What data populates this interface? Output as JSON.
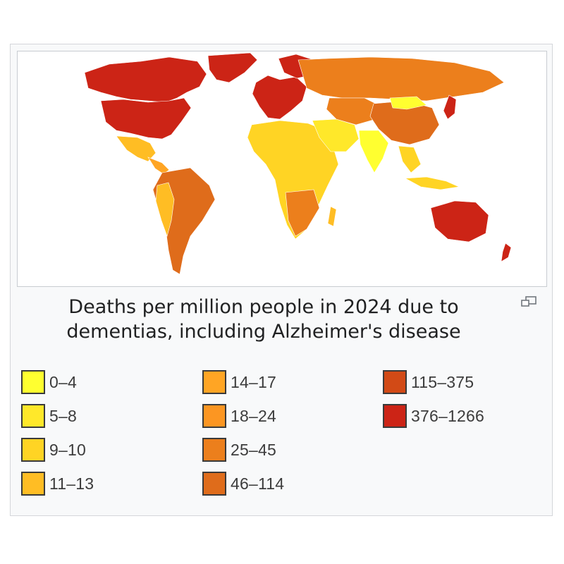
{
  "caption": {
    "line1": "Deaths per million people in 2024 due to",
    "line2": "dementias, including Alzheimer's disease"
  },
  "enlarge_icon": "enlarge-icon",
  "legend": {
    "columns": [
      [
        {
          "label": "0–4",
          "color": "#ffff30"
        },
        {
          "label": "5–8",
          "color": "#ffe82a"
        },
        {
          "label": "9–10",
          "color": "#ffd424"
        },
        {
          "label": "11–13",
          "color": "#ffbd24"
        }
      ],
      [
        {
          "label": "14–17",
          "color": "#ffa524"
        },
        {
          "label": "18–24",
          "color": "#fc9622"
        },
        {
          "label": "25–45",
          "color": "#ec7f1c"
        },
        {
          "label": "46–114",
          "color": "#df6c1b"
        }
      ],
      [
        {
          "label": "115–375",
          "color": "#d24a16"
        },
        {
          "label": "376–1266",
          "color": "#cc2416"
        }
      ]
    ]
  },
  "map_colors": {
    "north_america": "#cc2416",
    "central_america": "#ffbd24",
    "south_america": "#df6c1b",
    "europe": "#cc2416",
    "russia": "#ec7f1c",
    "africa": "#ffd424",
    "middle_east": "#ffe82a",
    "asia": "#df6c1b",
    "south_asia": "#ffff30",
    "australia": "#cc2416"
  }
}
